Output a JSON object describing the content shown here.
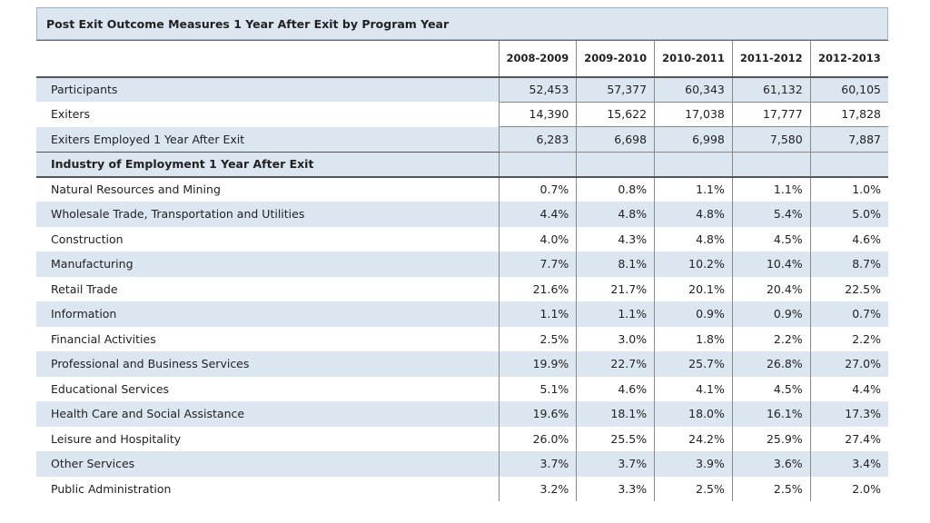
{
  "title": "Post Exit Outcome Measures 1 Year After Exit by Program Year",
  "years": [
    "2008-2009",
    "2009-2010",
    "2010-2011",
    "2011-2012",
    "2012-2013"
  ],
  "summary_rows": [
    {
      "label": "Participants",
      "values": [
        "52,453",
        "57,377",
        "60,343",
        "61,132",
        "60,105"
      ]
    },
    {
      "label": "Exiters",
      "values": [
        "14,390",
        "15,622",
        "17,038",
        "17,777",
        "17,828"
      ]
    },
    {
      "label": "Exiters Employed 1 Year After Exit",
      "values": [
        "6,283",
        "6,698",
        "6,998",
        "7,580",
        "7,887"
      ]
    }
  ],
  "section_label": "Industry of Employment 1 Year After Exit",
  "industry_rows": [
    {
      "label": "Natural Resources and Mining",
      "values": [
        "0.7%",
        "0.8%",
        "1.1%",
        "1.1%",
        "1.0%"
      ]
    },
    {
      "label": "Wholesale Trade, Transportation and Utilities",
      "values": [
        "4.4%",
        "4.8%",
        "4.8%",
        "5.4%",
        "5.0%"
      ]
    },
    {
      "label": "Construction",
      "values": [
        "4.0%",
        "4.3%",
        "4.8%",
        "4.5%",
        "4.6%"
      ]
    },
    {
      "label": "Manufacturing",
      "values": [
        "7.7%",
        "8.1%",
        "10.2%",
        "10.4%",
        "8.7%"
      ]
    },
    {
      "label": "Retail Trade",
      "values": [
        "21.6%",
        "21.7%",
        "20.1%",
        "20.4%",
        "22.5%"
      ]
    },
    {
      "label": "Information",
      "values": [
        "1.1%",
        "1.1%",
        "0.9%",
        "0.9%",
        "0.7%"
      ]
    },
    {
      "label": "Financial Activities",
      "values": [
        "2.5%",
        "3.0%",
        "1.8%",
        "2.2%",
        "2.2%"
      ]
    },
    {
      "label": "Professional and Business Services",
      "values": [
        "19.9%",
        "22.7%",
        "25.7%",
        "26.8%",
        "27.0%"
      ]
    },
    {
      "label": "Educational Services",
      "values": [
        "5.1%",
        "4.6%",
        "4.1%",
        "4.5%",
        "4.4%"
      ]
    },
    {
      "label": "Health Care and Social Assistance",
      "values": [
        "19.6%",
        "18.1%",
        "18.0%",
        "16.1%",
        "17.3%"
      ]
    },
    {
      "label": "Leisure and Hospitality",
      "values": [
        "26.0%",
        "25.5%",
        "24.2%",
        "25.9%",
        "27.4%"
      ]
    },
    {
      "label": "Other Services",
      "values": [
        "3.7%",
        "3.7%",
        "3.9%",
        "3.6%",
        "3.4%"
      ]
    },
    {
      "label": "Public Administration",
      "values": [
        "3.2%",
        "3.3%",
        "2.5%",
        "2.5%",
        "2.0%"
      ]
    }
  ]
}
